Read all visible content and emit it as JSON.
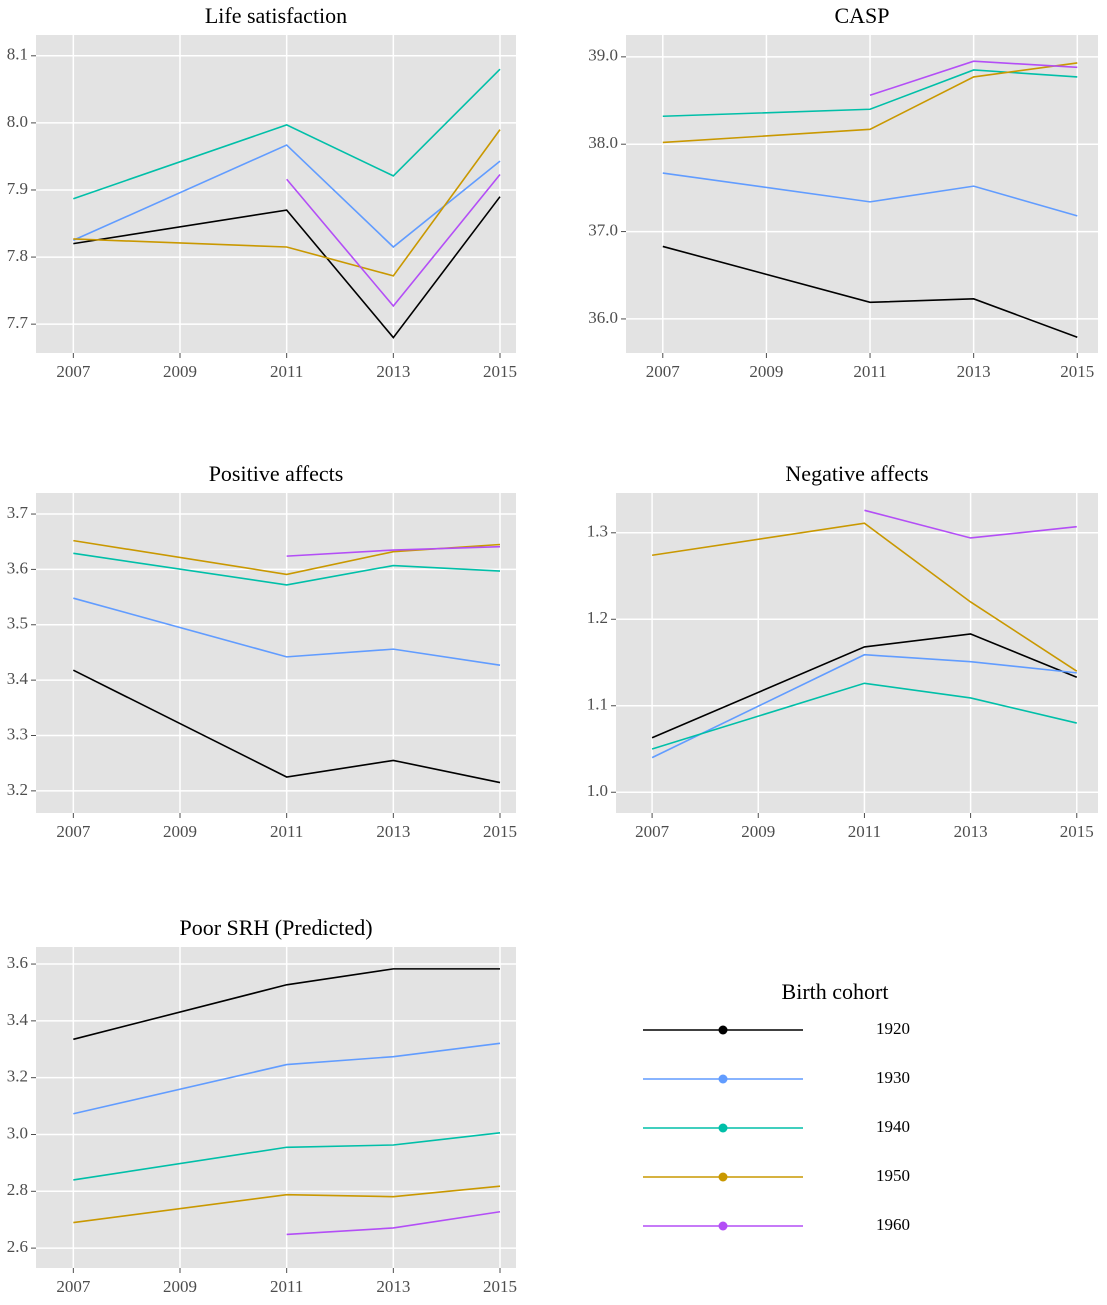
{
  "chart_data": [
    {
      "type": "line",
      "title": "Life satisfaction",
      "grid": true,
      "x": [
        2007,
        2011,
        2013,
        2015
      ],
      "xlim": [
        2006.3,
        2015.3
      ],
      "xticks": [
        2007,
        2009,
        2011,
        2013,
        2015
      ],
      "ylim": [
        7.657,
        8.131
      ],
      "yticks": [
        7.7,
        7.8,
        7.9,
        {
          "value": 8,
          "label": "8.0"
        },
        8.1
      ],
      "series": [
        {
          "name": "1920",
          "color": "#000000",
          "values": [
            7.82,
            7.87,
            7.68,
            7.89
          ]
        },
        {
          "name": "1930",
          "color": "#619CFF",
          "values": [
            7.825,
            7.967,
            7.815,
            7.943
          ]
        },
        {
          "name": "1940",
          "color": "#00BFA8",
          "values": [
            7.887,
            7.997,
            7.921,
            8.08
          ]
        },
        {
          "name": "1950",
          "color": "#C99800",
          "values": [
            7.827,
            7.815,
            7.772,
            7.99
          ]
        },
        {
          "name": "1960",
          "color": "#B34EF6",
          "values": [
            null,
            7.916,
            7.727,
            7.923
          ]
        }
      ]
    },
    {
      "type": "line",
      "title": "CASP",
      "grid": true,
      "x": [
        2007,
        2011,
        2013,
        2015
      ],
      "xlim": [
        2006.29,
        2015.4
      ],
      "xticks": [
        2007,
        2009,
        2011,
        2013,
        2015
      ],
      "ylim": [
        35.61,
        39.25
      ],
      "yticks": [
        {
          "value": 36,
          "label": "36.0"
        },
        {
          "value": 37,
          "label": "37.0"
        },
        {
          "value": 38,
          "label": "38.0"
        },
        {
          "value": 39,
          "label": "39.0"
        }
      ],
      "series": [
        {
          "name": "1920",
          "color": "#000000",
          "values": [
            36.83,
            36.19,
            36.23,
            35.79
          ]
        },
        {
          "name": "1930",
          "color": "#619CFF",
          "values": [
            37.67,
            37.34,
            37.52,
            37.18
          ]
        },
        {
          "name": "1940",
          "color": "#00BFA8",
          "values": [
            38.32,
            38.4,
            38.85,
            38.77
          ]
        },
        {
          "name": "1950",
          "color": "#C99800",
          "values": [
            38.02,
            38.17,
            38.77,
            38.93
          ]
        },
        {
          "name": "1960",
          "color": "#B34EF6",
          "values": [
            null,
            38.56,
            38.95,
            38.88
          ]
        }
      ]
    },
    {
      "type": "line",
      "title": "Positive affects",
      "grid": true,
      "x": [
        2007,
        2011,
        2013,
        2015
      ],
      "xlim": [
        2006.3,
        2015.3
      ],
      "xticks": [
        2007,
        2009,
        2011,
        2013,
        2015
      ],
      "ylim": [
        3.16,
        3.738
      ],
      "yticks": [
        3.2,
        3.3,
        3.4,
        3.5,
        3.6,
        3.7
      ],
      "series": [
        {
          "name": "1920",
          "color": "#000000",
          "values": [
            3.418,
            3.225,
            3.255,
            3.215
          ]
        },
        {
          "name": "1930",
          "color": "#619CFF",
          "values": [
            3.548,
            3.442,
            3.456,
            3.427
          ]
        },
        {
          "name": "1940",
          "color": "#00BFA8",
          "values": [
            3.629,
            3.572,
            3.607,
            3.597
          ]
        },
        {
          "name": "1950",
          "color": "#C99800",
          "values": [
            3.652,
            3.591,
            3.632,
            3.645
          ]
        },
        {
          "name": "1960",
          "color": "#B34EF6",
          "values": [
            null,
            3.624,
            3.635,
            3.641
          ]
        }
      ]
    },
    {
      "type": "line",
      "title": "Negative affects",
      "grid": true,
      "x": [
        2007,
        2011,
        2013,
        2015
      ],
      "xlim": [
        2006.32,
        2015.4
      ],
      "xticks": [
        2007,
        2009,
        2011,
        2013,
        2015
      ],
      "ylim": [
        0.976,
        1.346
      ],
      "yticks": [
        {
          "value": 1,
          "label": "1.0"
        },
        1.1,
        1.2,
        1.3
      ],
      "series": [
        {
          "name": "1920",
          "color": "#000000",
          "values": [
            1.063,
            1.168,
            1.183,
            1.133
          ]
        },
        {
          "name": "1930",
          "color": "#619CFF",
          "values": [
            1.04,
            1.159,
            1.151,
            1.138
          ]
        },
        {
          "name": "1940",
          "color": "#00BFA8",
          "values": [
            1.05,
            1.126,
            1.109,
            1.08
          ]
        },
        {
          "name": "1950",
          "color": "#C99800",
          "values": [
            1.274,
            1.311,
            1.22,
            1.14
          ]
        },
        {
          "name": "1960",
          "color": "#B34EF6",
          "values": [
            null,
            1.326,
            1.294,
            1.307
          ]
        }
      ]
    },
    {
      "type": "line",
      "title": "Poor SRH (Predicted)",
      "grid": true,
      "x": [
        2007,
        2011,
        2013,
        2015
      ],
      "xlim": [
        2006.3,
        2015.3
      ],
      "xticks": [
        2007,
        2009,
        2011,
        2013,
        2015
      ],
      "ylim": [
        2.53,
        3.66
      ],
      "yticks": [
        2.6,
        2.8,
        {
          "value": 3,
          "label": "3.0"
        },
        3.2,
        3.4,
        3.6
      ],
      "series": [
        {
          "name": "1920",
          "color": "#000000",
          "values": [
            3.335,
            3.527,
            3.583,
            3.583
          ]
        },
        {
          "name": "1930",
          "color": "#619CFF",
          "values": [
            3.073,
            3.246,
            3.274,
            3.321
          ]
        },
        {
          "name": "1940",
          "color": "#00BFA8",
          "values": [
            2.84,
            2.955,
            2.963,
            3.006
          ]
        },
        {
          "name": "1950",
          "color": "#C99800",
          "values": [
            2.69,
            2.788,
            2.781,
            2.818
          ]
        },
        {
          "name": "1960",
          "color": "#B34EF6",
          "values": [
            null,
            2.648,
            2.671,
            2.728
          ]
        }
      ]
    }
  ],
  "legend": {
    "title": "Birth cohort"
  }
}
